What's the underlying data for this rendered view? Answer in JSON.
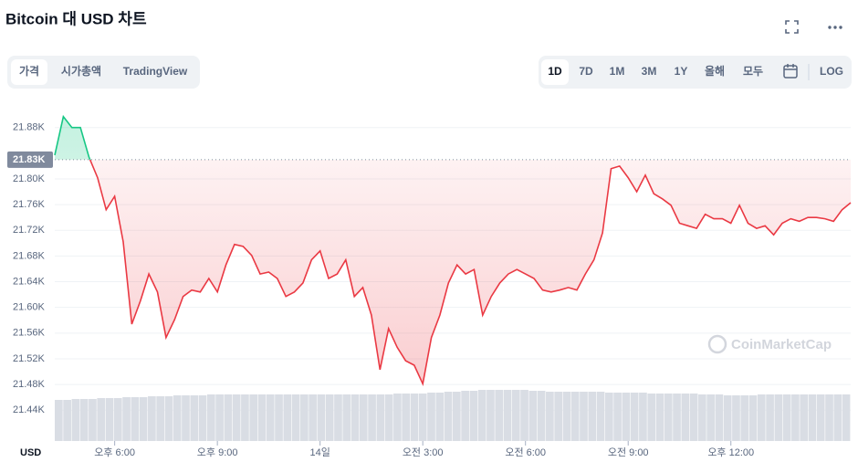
{
  "chart_data": {
    "type": "line",
    "title": "Bitcoin 대 USD 차트",
    "tabs": [
      "가격",
      "시가총액",
      "TradingView"
    ],
    "selected_tab": 0,
    "ranges": [
      "1D",
      "7D",
      "1M",
      "3M",
      "1Y",
      "올해",
      "모두"
    ],
    "selected_range": 0,
    "log_button": "LOG",
    "axis_label": "USD",
    "watermark": "CoinMarketCap",
    "up_color": "#16c784",
    "down_color": "#ea3943",
    "reference": {
      "value": 21830,
      "label": "21.83K"
    },
    "xlim": [
      16.25,
      39.5
    ],
    "xticks": [
      {
        "value": 18,
        "label": "오후 6:00"
      },
      {
        "value": 21,
        "label": "오후 9:00"
      },
      {
        "value": 24,
        "label": "14일"
      },
      {
        "value": 27,
        "label": "오전 3:00"
      },
      {
        "value": 30,
        "label": "오전 6:00"
      },
      {
        "value": 33,
        "label": "오전 9:00"
      },
      {
        "value": 36,
        "label": "오후 12:00"
      }
    ],
    "ylim": [
      21392,
      21908
    ],
    "yticks": [
      {
        "value": 21440,
        "label": "21.44K"
      },
      {
        "value": 21480,
        "label": "21.48K"
      },
      {
        "value": 21520,
        "label": "21.52K"
      },
      {
        "value": 21560,
        "label": "21.56K"
      },
      {
        "value": 21600,
        "label": "21.60K"
      },
      {
        "value": 21640,
        "label": "21.64K"
      },
      {
        "value": 21680,
        "label": "21.68K"
      },
      {
        "value": 21720,
        "label": "21.72K"
      },
      {
        "value": 21760,
        "label": "21.76K"
      },
      {
        "value": 21800,
        "label": "21.80K"
      },
      {
        "value": 21880,
        "label": "21.88K"
      }
    ],
    "grid": true,
    "x": [
      16.25,
      16.5,
      16.75,
      17,
      17.25,
      17.5,
      17.75,
      18,
      18.25,
      18.5,
      18.75,
      19,
      19.25,
      19.5,
      19.75,
      20,
      20.25,
      20.5,
      20.75,
      21,
      21.25,
      21.5,
      21.75,
      22,
      22.25,
      22.5,
      22.75,
      23,
      23.25,
      23.5,
      23.75,
      24,
      24.25,
      24.5,
      24.75,
      25,
      25.25,
      25.5,
      25.75,
      26,
      26.25,
      26.5,
      26.75,
      27,
      27.25,
      27.5,
      27.75,
      28,
      28.25,
      28.5,
      28.75,
      29,
      29.25,
      29.5,
      29.75,
      30,
      30.25,
      30.5,
      30.75,
      31,
      31.25,
      31.5,
      31.75,
      32,
      32.25,
      32.5,
      32.75,
      33,
      33.25,
      33.5,
      33.75,
      34,
      34.25,
      34.5,
      34.75,
      35,
      35.25,
      35.5,
      35.75,
      36,
      36.25,
      36.5,
      36.75,
      37,
      37.25,
      37.5,
      37.75,
      38,
      38.25,
      38.5,
      38.75,
      39,
      39.25,
      39.5
    ],
    "values": [
      21837,
      21897,
      21880,
      21880,
      21834,
      21802,
      21752,
      21773,
      21702,
      21574,
      21610,
      21652,
      21624,
      21553,
      21581,
      21617,
      21627,
      21624,
      21645,
      21624,
      21666,
      21698,
      21695,
      21681,
      21652,
      21655,
      21645,
      21617,
      21624,
      21638,
      21674,
      21688,
      21645,
      21652,
      21674,
      21617,
      21631,
      21588,
      21503,
      21567,
      21538,
      21517,
      21510,
      21481,
      21553,
      21588,
      21638,
      21666,
      21652,
      21659,
      21588,
      21617,
      21638,
      21652,
      21659,
      21652,
      21645,
      21627,
      21624,
      21627,
      21631,
      21627,
      21652,
      21674,
      21716,
      21816,
      21820,
      21802,
      21780,
      21806,
      21777,
      21769,
      21759,
      21731,
      21727,
      21723,
      21745,
      21738,
      21738,
      21731,
      21759,
      21731,
      21723,
      21727,
      21713,
      21731,
      21738,
      21734,
      21740,
      21740,
      21738,
      21734,
      21752,
      21763
    ],
    "volume_lim": [
      0,
      60
    ],
    "volume": [
      45,
      45,
      46,
      46,
      46,
      47,
      47,
      47,
      48,
      48,
      48,
      49,
      49,
      49,
      50,
      50,
      50,
      50,
      51,
      51,
      51,
      51,
      51,
      51,
      51,
      51,
      51,
      51,
      51,
      51,
      51,
      51,
      51,
      51,
      51,
      51,
      51,
      51,
      51,
      51,
      52,
      52,
      52,
      52,
      53,
      53,
      54,
      54,
      55,
      55,
      56,
      56,
      56,
      56,
      56,
      56,
      55,
      55,
      54,
      54,
      54,
      54,
      54,
      54,
      54,
      53,
      53,
      53,
      53,
      53,
      52,
      52,
      52,
      52,
      52,
      52,
      51,
      51,
      51,
      50,
      50,
      50,
      50,
      51,
      51,
      51,
      51,
      51,
      51,
      51,
      51,
      51,
      51,
      51
    ]
  }
}
